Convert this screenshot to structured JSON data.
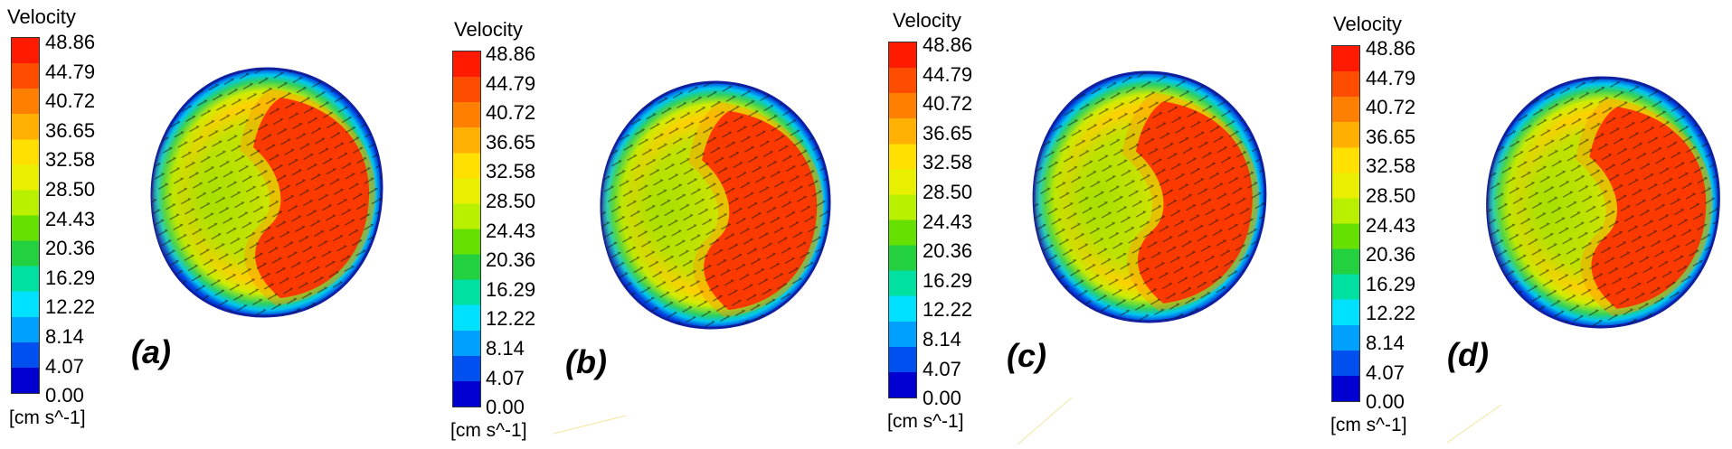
{
  "legend": {
    "title": "Velocity",
    "unit": "[cm s^-1]",
    "ticks": [
      "48.86",
      "44.79",
      "40.72",
      "36.65",
      "32.58",
      "28.50",
      "24.43",
      "20.36",
      "16.29",
      "12.22",
      "8.14",
      "4.07",
      "0.00"
    ],
    "colors": [
      "#ff1a00",
      "#ff4d00",
      "#ff7f00",
      "#ffb000",
      "#ffe000",
      "#e8f000",
      "#b8f000",
      "#66e000",
      "#22d040",
      "#00e0a0",
      "#00e0ff",
      "#00a0ff",
      "#0050f0",
      "#0000d0"
    ]
  },
  "panels": [
    {
      "label": "(a)"
    },
    {
      "label": "(b)"
    },
    {
      "label": "(c)"
    },
    {
      "label": "(d)"
    }
  ]
}
